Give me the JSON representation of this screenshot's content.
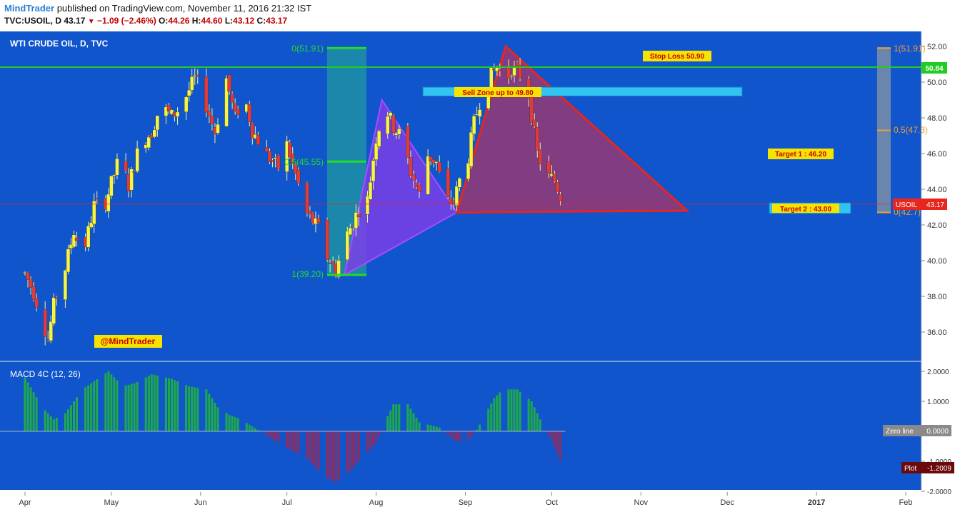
{
  "header": {
    "brand": "MindTrader",
    "published": "published on TradingView.com, November 11, 2016 21:32 IST",
    "symbol": "TVC:USOIL, D",
    "last": "43.17",
    "change": "−1.09 (−2.46%)",
    "o_label": "O:",
    "o_value": "44.26",
    "h_label": "H:",
    "h_value": "44.60",
    "l_label": "L:",
    "l_value": "43.12",
    "c_label": "C:",
    "c_value": "43.17"
  },
  "colors": {
    "background": "#1155cc",
    "bull": "#f5f542",
    "bear": "#e23a3a",
    "hist_pos": "#1faa4a",
    "hist_neg": "#8a2f66",
    "triangle_fill": "#8e3a7a",
    "purple_fill": "#7a3fe6",
    "fib_green": "#22dd22"
  },
  "chart_data": [
    {
      "type": "candlestick",
      "title": "WTI CRUDE OIL, D, TVC",
      "x_labels": [
        "Apr",
        "May",
        "Jun",
        "Jul",
        "Aug",
        "Sep",
        "Oct",
        "Nov",
        "Dec",
        "2017",
        "Feb"
      ],
      "x_label_days": [
        0,
        30,
        61,
        91,
        122,
        153,
        183,
        214,
        244,
        275,
        306
      ],
      "y_ticks": [
        "52.00",
        "50.00",
        "48.00",
        "46.00",
        "44.00",
        "42.00",
        "40.00",
        "38.00",
        "36.00"
      ],
      "ylim": [
        34.8,
        53.0
      ],
      "ohlc_anchors": [
        [
          0,
          39.3
        ],
        [
          3,
          38.2
        ],
        [
          6,
          36.7
        ],
        [
          8,
          35.6
        ],
        [
          10,
          37.5
        ],
        [
          14,
          39.6
        ],
        [
          17,
          41.7
        ],
        [
          20,
          40.2
        ],
        [
          24,
          43.1
        ],
        [
          28,
          43.3
        ],
        [
          33,
          45.9
        ],
        [
          36,
          44.2
        ],
        [
          40,
          46.6
        ],
        [
          44,
          47.2
        ],
        [
          47,
          48.7
        ],
        [
          51,
          48.1
        ],
        [
          54,
          48.6
        ],
        [
          59,
          50.2
        ],
        [
          62,
          49.2
        ],
        [
          66,
          47.2
        ],
        [
          70,
          50.2
        ],
        [
          73,
          48.0
        ],
        [
          76,
          49.4
        ],
        [
          79,
          47.3
        ],
        [
          84,
          45.9
        ],
        [
          88,
          45.2
        ],
        [
          91,
          46.5
        ],
        [
          94,
          44.8
        ],
        [
          98,
          42.6
        ],
        [
          102,
          41.8
        ],
        [
          105,
          40.2
        ],
        [
          108,
          39.5
        ],
        [
          112,
          41.5
        ],
        [
          116,
          42.9
        ],
        [
          119,
          43.4
        ],
        [
          122,
          46.9
        ],
        [
          125,
          48.7
        ],
        [
          128,
          47.5
        ],
        [
          131,
          46.9
        ],
        [
          134,
          45.0
        ],
        [
          137,
          43.7
        ],
        [
          140,
          45.9
        ],
        [
          143,
          45.5
        ],
        [
          146,
          43.3
        ],
        [
          149,
          43.3
        ],
        [
          151,
          44.5
        ],
        [
          153,
          44.9
        ],
        [
          156,
          47.7
        ],
        [
          159,
          49.5
        ],
        [
          162,
          50.4
        ],
        [
          164,
          50.9
        ],
        [
          167,
          50.0
        ],
        [
          169,
          50.8
        ],
        [
          172,
          50.4
        ],
        [
          175,
          49.3
        ],
        [
          178,
          46.0
        ],
        [
          181,
          44.8
        ],
        [
          184,
          44.5
        ],
        [
          187,
          43.2
        ]
      ],
      "annotations": {
        "watermark": "@MindTrader",
        "stop_loss": "Stop Loss 50.90",
        "sell_zone": "Sell Zone up to 49.80",
        "target1": "Target 1 : 46.20",
        "target2": "Target 2 : 43.00",
        "fib_left_top": "0(51.91)",
        "fib_left_mid": "0.5(45.55)",
        "fib_left_bot": "1(39.20)",
        "fib_right_top": "1(51.91)",
        "fib_right_mid": "0.5(47.3)",
        "fib_right_bot": "0(42.7)",
        "hline_value": "50.84",
        "price_tag_symbol": "USOIL",
        "price_tag_value": "43.17"
      },
      "levels": {
        "hline": 50.84,
        "price": 43.17,
        "stop_loss": 50.9,
        "sell_zone_low": 49.3,
        "sell_zone_high": 49.8,
        "target1": 46.2,
        "target2": 43.0,
        "fib_left": [
          51.91,
          45.55,
          39.2
        ],
        "fib_right": [
          51.91,
          47.3,
          42.7
        ],
        "pattern_X": [
          111,
          39.2
        ],
        "pattern_A": [
          124,
          49.0
        ],
        "pattern_B": [
          150,
          42.7
        ],
        "pattern_C": [
          167,
          52.0
        ],
        "pattern_D": [
          230,
          42.8
        ]
      }
    },
    {
      "type": "bar",
      "title": "MACD 4C (12, 26)",
      "y_ticks": [
        "2.0000",
        "1.0000",
        "-1.0000",
        "-2.0000"
      ],
      "ylim": [
        -2.1,
        2.1
      ],
      "zero_label": "Zero line",
      "zero_value": "0.0000",
      "plot_label": "Plot",
      "plot_value": "-1.2009",
      "hist_anchors": [
        [
          0,
          1.8
        ],
        [
          6,
          0.8
        ],
        [
          10,
          0.4
        ],
        [
          14,
          0.6
        ],
        [
          20,
          1.4
        ],
        [
          26,
          1.8
        ],
        [
          29,
          2.0
        ],
        [
          34,
          1.5
        ],
        [
          38,
          1.6
        ],
        [
          44,
          1.9
        ],
        [
          51,
          1.75
        ],
        [
          57,
          1.5
        ],
        [
          63,
          1.4
        ],
        [
          67,
          0.8
        ],
        [
          71,
          0.55
        ],
        [
          75,
          0.4
        ],
        [
          80,
          0.1
        ],
        [
          85,
          -0.2
        ],
        [
          92,
          -0.6
        ],
        [
          98,
          -0.9
        ],
        [
          104,
          -1.5
        ],
        [
          108,
          -1.7
        ],
        [
          113,
          -1.3
        ],
        [
          118,
          -0.8
        ],
        [
          122,
          -0.4
        ],
        [
          125,
          0.3
        ],
        [
          128,
          0.9
        ],
        [
          133,
          0.9
        ],
        [
          137,
          0.3
        ],
        [
          141,
          0.2
        ],
        [
          145,
          0.1
        ],
        [
          149,
          -0.3
        ],
        [
          153,
          -0.4
        ],
        [
          157,
          0.05
        ],
        [
          163,
          1.1
        ],
        [
          166,
          1.4
        ],
        [
          171,
          1.4
        ],
        [
          176,
          1.0
        ],
        [
          180,
          0.2
        ],
        [
          183,
          -0.3
        ],
        [
          187,
          -1.2
        ]
      ]
    }
  ]
}
